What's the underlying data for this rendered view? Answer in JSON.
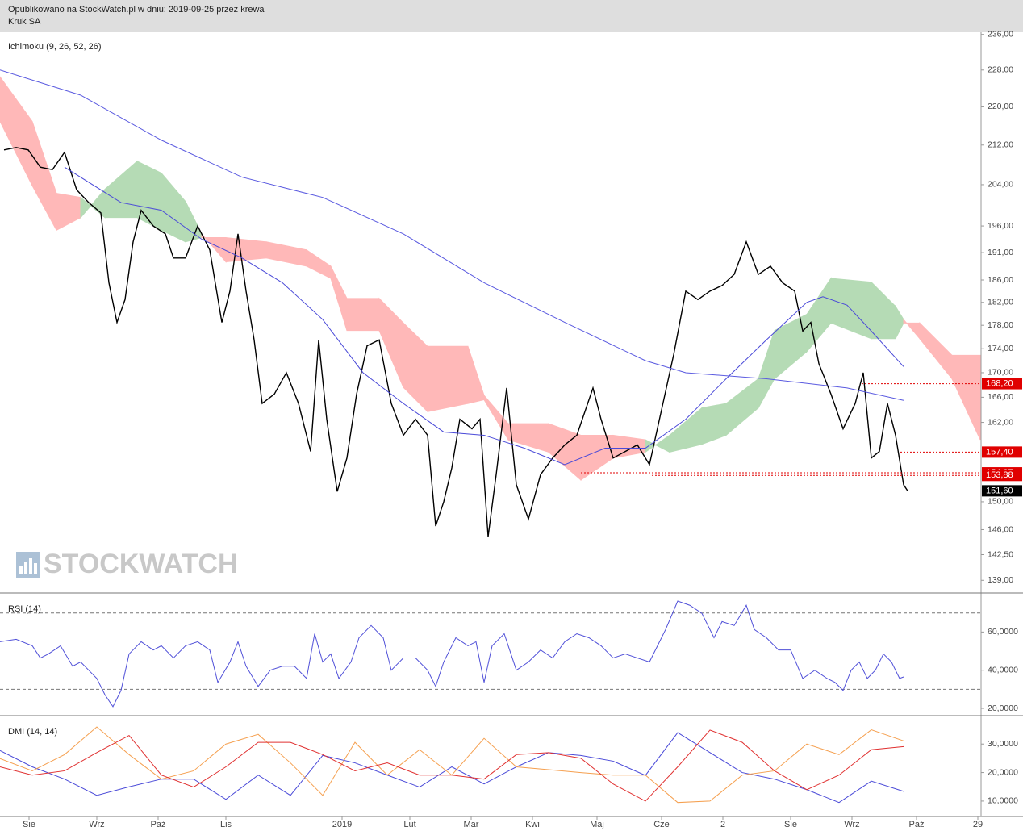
{
  "header": {
    "line1": "Opublikowano na StockWatch.pl w dniu: 2019-09-25 przez krewa",
    "line2": "Kruk SA"
  },
  "chart_data": [
    {
      "type": "line",
      "title": "Ichimoku (9, 26, 52, 26)",
      "watermark": "STOCKWATCH",
      "log_scale": true,
      "xlim": [
        0,
        304
      ],
      "ylim": [
        137.3,
        236.5
      ],
      "yticks": [
        {
          "value": 236,
          "label": "236,00"
        },
        {
          "value": 228,
          "label": "228,00"
        },
        {
          "value": 220,
          "label": "220,00"
        },
        {
          "value": 212,
          "label": "212,00"
        },
        {
          "value": 204,
          "label": "204,00"
        },
        {
          "value": 196,
          "label": "196,00"
        },
        {
          "value": 191,
          "label": "191,00"
        },
        {
          "value": 186,
          "label": "186,00"
        },
        {
          "value": 182,
          "label": "182,00"
        },
        {
          "value": 178,
          "label": "178,00"
        },
        {
          "value": 174,
          "label": "174,00"
        },
        {
          "value": 170,
          "label": "170,00"
        },
        {
          "value": 166,
          "label": "166,00"
        },
        {
          "value": 162,
          "label": "162,00"
        },
        {
          "value": 150,
          "label": "150,00"
        },
        {
          "value": 146,
          "label": "146,00"
        },
        {
          "value": 142.5,
          "label": "142,50"
        },
        {
          "value": 139,
          "label": "139,00"
        }
      ],
      "cloud": {
        "up_color": "#b5dbb5",
        "down_color": "#ffb8b8",
        "x": [
          0,
          10,
          17.5,
          25,
          32.5,
          42.5,
          50,
          57.5,
          62.5,
          70,
          82.5,
          95,
          102.5,
          107.5,
          117.5,
          125,
          132.5,
          145,
          150,
          157.5,
          170,
          180,
          190,
          200,
          207.5,
          217.5,
          225,
          235,
          240,
          250,
          257.5,
          270,
          277.5,
          280,
          285,
          295,
          303.75
        ],
        "span_a": [
          216.9,
          203.8,
          195.2,
          197.6,
          203.1,
          208.7,
          206.3,
          200.7,
          194.5,
          189.3,
          190,
          188.5,
          186.3,
          177.1,
          177.1,
          167.6,
          163.7,
          165,
          165.6,
          159.3,
          157.4,
          153.2,
          156.5,
          157.4,
          160,
          164.3,
          165,
          169,
          177.1,
          179.9,
          186.3,
          185.6,
          181.3,
          179,
          175.7,
          169,
          159.3
        ],
        "span_b": [
          226.5,
          216.9,
          202.3,
          201.5,
          197.6,
          197.6,
          195.2,
          193,
          193.8,
          193.8,
          193,
          191.5,
          188.5,
          182.7,
          182.7,
          178.4,
          174.4,
          174.4,
          166.3,
          161.8,
          161.8,
          160,
          160,
          159.3,
          157.4,
          158.6,
          160,
          164.3,
          169,
          173.5,
          178.4,
          175.7,
          175.7,
          178.4,
          178.4,
          172.9,
          172.9
        ]
      },
      "series": [
        {
          "color": "#000000",
          "x": [
            1.25,
            5,
            8.75,
            12.5,
            16.25,
            20,
            23.75,
            27.5,
            31.25,
            33.75,
            36.25,
            38.75,
            41.25,
            43.75,
            47.5,
            51.25,
            53.75,
            57.5,
            61.25,
            65,
            68.75,
            71.25,
            73.75,
            76.25,
            78.75,
            81.25,
            85,
            88.75,
            92.5,
            96.25,
            98.75,
            101.25,
            104.5,
            107.5,
            110.5,
            113.75,
            117.5,
            121.25,
            125,
            128.75,
            132.5,
            135,
            137.5,
            140,
            142.5,
            146.25,
            148.75,
            151.25,
            153.75,
            157,
            160,
            163.75,
            167.5,
            171.25,
            175,
            178.75,
            183.75,
            186.25,
            190,
            193.75,
            197.5,
            201.25,
            205,
            208.75,
            212.5,
            216.25,
            220,
            223.75,
            227.5,
            231.25,
            235,
            238.75,
            242.5,
            246.25,
            248.75,
            251.25,
            253.75,
            257.5,
            261.25,
            265,
            267.5,
            270,
            272.5,
            275,
            277.5,
            280,
            281.25
          ],
          "values": [
            211,
            211.5,
            211,
            207.5,
            207,
            210.5,
            203,
            200.5,
            198.5,
            185.5,
            178.5,
            182.5,
            193,
            199,
            196,
            194.5,
            190,
            190,
            196,
            191.5,
            178.5,
            184,
            194.5,
            184,
            175.5,
            165,
            166.5,
            170,
            165,
            157.5,
            175.5,
            162.5,
            151.5,
            156.5,
            166.5,
            174.5,
            175.5,
            165,
            160,
            162.5,
            160,
            146.5,
            150,
            155,
            162.5,
            161,
            162.5,
            145,
            154,
            167.5,
            152.5,
            147.5,
            154,
            156.5,
            158.5,
            160,
            167.5,
            162.5,
            156.5,
            157.5,
            158.5,
            155.5,
            164,
            173,
            184,
            182.5,
            184,
            185,
            187,
            193,
            187,
            188.5,
            185.5,
            184,
            177,
            178.5,
            171.5,
            166.5,
            161,
            165,
            170,
            156.5,
            157.5,
            165,
            160,
            152.5,
            151.6
          ]
        },
        {
          "color": "#5a5ae0",
          "x": [
            0,
            25,
            50,
            75,
            100,
            125,
            150,
            175,
            200,
            212.5,
            237.5,
            262.5,
            280
          ],
          "values": [
            228,
            222.5,
            213,
            205.5,
            201.5,
            194.5,
            185.5,
            178.5,
            172,
            170,
            169,
            167.5,
            165.5
          ]
        },
        {
          "color": "#4a4ad8",
          "x": [
            20,
            37.5,
            50,
            62.5,
            75,
            87.5,
            100,
            112.5,
            125,
            137.5,
            150,
            162.5,
            175,
            187.5,
            200,
            212.5,
            225,
            237.5,
            250,
            255,
            262.5,
            270,
            280
          ],
          "values": [
            207.5,
            200.5,
            199,
            193.5,
            190,
            185.5,
            179,
            170,
            165,
            160.5,
            160,
            158,
            155.5,
            158,
            158,
            162.5,
            169,
            175.5,
            182,
            183,
            181.5,
            177,
            171
          ]
        }
      ],
      "levels": [
        {
          "value": 168.2,
          "label": "168,20",
          "color": "#e00000",
          "x_start": 267
        },
        {
          "value": 157.4,
          "label": "157,40",
          "color": "#e00000",
          "x_start": 279
        },
        {
          "value": 154.27,
          "label": "154,27",
          "color": "#e00000",
          "x_start": 180
        },
        {
          "value": 153.88,
          "label": "153,88",
          "color": "#e00000",
          "x_start": 202
        },
        {
          "value": 151.6,
          "label": "151,60",
          "color": "#000000"
        }
      ]
    },
    {
      "type": "line",
      "title": "RSI (14)",
      "xlim": [
        0,
        304
      ],
      "ylim": [
        16.2,
        79.6
      ],
      "yticks": [
        {
          "value": 60,
          "label": "60,0000"
        },
        {
          "value": 40,
          "label": "40,0000"
        },
        {
          "value": 20,
          "label": "20,0000"
        }
      ],
      "ref_lines": [
        70,
        30
      ],
      "series": [
        {
          "color": "#5050d8",
          "x": [
            0,
            5,
            10,
            12.5,
            15,
            18.75,
            22.5,
            25,
            27.5,
            30,
            32.5,
            35,
            37.5,
            40,
            43.75,
            47.5,
            50,
            53.75,
            57.5,
            61.25,
            65,
            67.5,
            71.25,
            73.75,
            76.25,
            80,
            83.75,
            87.5,
            91.25,
            95,
            97.5,
            100,
            102.5,
            105,
            108.75,
            111.25,
            115,
            118.75,
            121.25,
            125,
            128.75,
            132.5,
            135,
            137.5,
            141.25,
            145,
            147.5,
            150,
            152.5,
            156.25,
            160,
            163.75,
            167.5,
            171.25,
            175,
            178.75,
            182.5,
            186.25,
            190,
            193.75,
            197.5,
            201.25,
            203.75,
            206.25,
            210,
            213.75,
            217.5,
            221.25,
            223.75,
            227.5,
            231.25,
            233.75,
            237.5,
            241.25,
            245,
            248.75,
            252.5,
            256.25,
            258.75,
            261.25,
            263.75,
            266.25,
            268.75,
            271.25,
            273.75,
            276.25,
            278.75,
            280
          ],
          "values": [
            54.9,
            56.2,
            52.8,
            46.4,
            48.5,
            52.8,
            42.1,
            44.3,
            40,
            35.7,
            27.2,
            20.9,
            29.4,
            48.5,
            54.9,
            50.6,
            52.8,
            46.4,
            52.8,
            54.9,
            50.6,
            33.6,
            44.3,
            54.9,
            42.1,
            31.5,
            40,
            42.1,
            42.1,
            35.7,
            59.1,
            44.3,
            48.5,
            35.7,
            44.3,
            57,
            63.4,
            57,
            40,
            46.4,
            46.4,
            40,
            31.5,
            44.3,
            57,
            52.8,
            54.9,
            33.6,
            52.8,
            59.1,
            40,
            44.3,
            50.6,
            46.4,
            54.9,
            59.1,
            57,
            52.8,
            46.4,
            48.5,
            46.4,
            44.3,
            52.8,
            61.3,
            76.2,
            74,
            69.8,
            57,
            65.5,
            63.4,
            74,
            61.3,
            57,
            50.6,
            50.6,
            35.7,
            40,
            35.7,
            33.6,
            29.4,
            40,
            44.3,
            35.7,
            40,
            48.5,
            44.3,
            35.7,
            36.5
          ]
        }
      ]
    },
    {
      "type": "line",
      "title": "DMI (14, 14)",
      "xlim": [
        0,
        304
      ],
      "ylim": [
        4.6,
        39.4
      ],
      "yticks": [
        {
          "value": 30,
          "label": "30,0000"
        },
        {
          "value": 20,
          "label": "20,0000"
        },
        {
          "value": 10,
          "label": "10,0000"
        }
      ],
      "xticks": [
        {
          "value": 9,
          "label": "Sie"
        },
        {
          "value": 30,
          "label": "Wrz"
        },
        {
          "value": 49,
          "label": "Paź"
        },
        {
          "value": 70,
          "label": "Lis"
        },
        {
          "value": 106,
          "label": "2019"
        },
        {
          "value": 127,
          "label": "Lut"
        },
        {
          "value": 146,
          "label": "Mar"
        },
        {
          "value": 165,
          "label": "Kwi"
        },
        {
          "value": 185,
          "label": "Maj"
        },
        {
          "value": 205,
          "label": "Cze"
        },
        {
          "value": 224,
          "label": "2"
        },
        {
          "value": 245,
          "label": "Sie"
        },
        {
          "value": 264,
          "label": "Wrz"
        },
        {
          "value": 284,
          "label": "Paź"
        },
        {
          "value": 303,
          "label": "29"
        }
      ],
      "x": [
        0,
        10,
        20,
        30,
        40,
        50,
        60,
        70,
        80,
        90,
        100,
        110,
        120,
        130,
        140,
        150,
        160,
        170,
        180,
        190,
        200,
        210,
        220,
        230,
        240,
        250,
        260,
        270,
        280
      ],
      "series": [
        {
          "color": "#4a4ad8",
          "values": [
            27.7,
            22,
            17.7,
            12,
            15,
            17.7,
            17.7,
            10.6,
            19.1,
            12,
            26,
            23.4,
            19.1,
            14.9,
            22,
            16,
            22,
            27,
            26,
            24,
            19,
            34,
            27,
            20,
            17.7,
            14,
            9.5,
            17,
            13.4
          ]
        },
        {
          "color": "#f5a050",
          "values": [
            24.9,
            20.6,
            26.3,
            36,
            26.3,
            17.7,
            20.6,
            30,
            33.4,
            23.4,
            12,
            30.6,
            19.1,
            28,
            19.1,
            32,
            22,
            21,
            20,
            19.1,
            19.1,
            9.5,
            10,
            19.1,
            20.6,
            30,
            26.3,
            35,
            31.1
          ]
        },
        {
          "color": "#e03030",
          "values": [
            22,
            19.1,
            20.6,
            27,
            33,
            19.1,
            14.9,
            22,
            30.6,
            30.6,
            26.3,
            20.6,
            23.4,
            19.1,
            19.1,
            17.7,
            26.3,
            27,
            25,
            16,
            10,
            22,
            34.9,
            30.6,
            20.6,
            14,
            19.1,
            28,
            29.1
          ]
        }
      ]
    }
  ]
}
